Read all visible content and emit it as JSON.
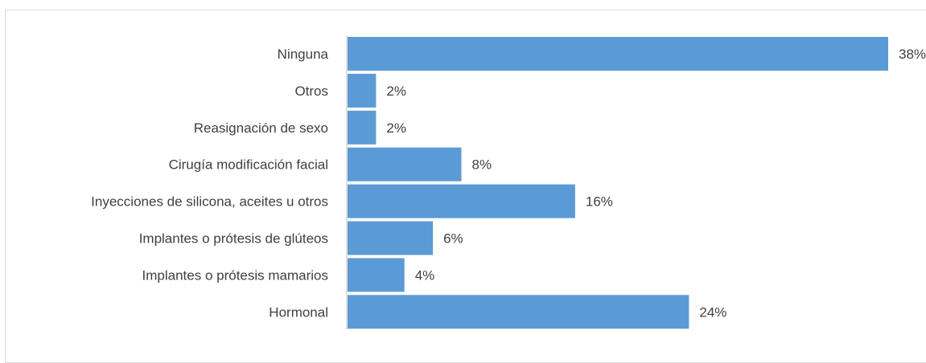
{
  "chart_data": {
    "type": "bar",
    "orientation": "horizontal",
    "categories": [
      "Ninguna",
      "Otros",
      "Reasignación de sexo",
      "Cirugía modificación facial",
      "Inyecciones de silicona, aceites u otros",
      "Implantes o prótesis de glúteos",
      "Implantes o prótesis mamarios ",
      "Hormonal"
    ],
    "values": [
      38,
      2,
      2,
      8,
      16,
      6,
      4,
      24
    ],
    "value_labels": [
      "38%",
      "2%",
      "2%",
      "8%",
      "16%",
      "6%",
      "4%",
      "24%"
    ],
    "unit": "%",
    "xlim": [
      0,
      38
    ],
    "bar_color": "#5b9bd5",
    "axis_color": "#bfbfbf",
    "grid": false,
    "legend": "none"
  }
}
